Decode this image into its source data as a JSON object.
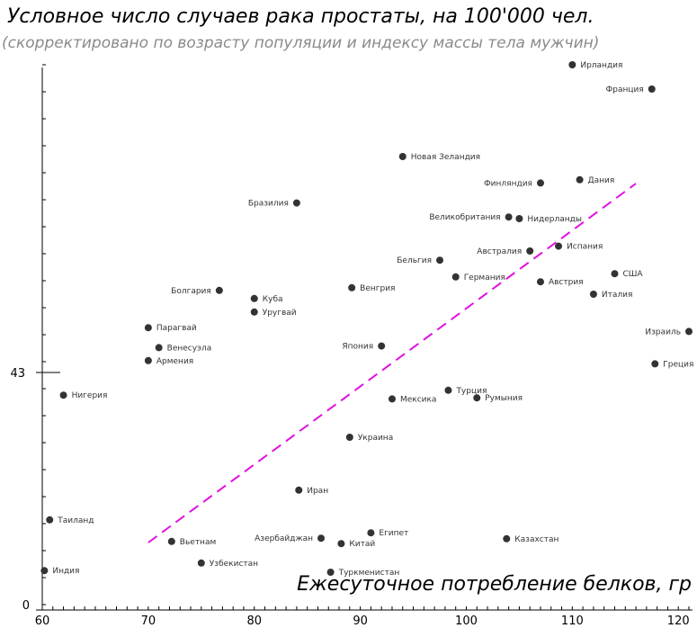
{
  "chart_data": {
    "type": "scatter",
    "title": "Условное число случаев рака простаты, на 100'000 чел.",
    "subtitle": "(скорректировано по возрасту популяции и индексу массы тела мужчин)",
    "xlabel": "Ежесуточное потребление белков, гр",
    "ylabel": "",
    "xlim": [
      60,
      121
    ],
    "x_ticks": [
      "60",
      "70",
      "80",
      "90",
      "100",
      "110",
      "120"
    ],
    "y_ticks": [
      "0",
      "43"
    ],
    "grid": false,
    "trendline": {
      "color": "#e010e0",
      "style": "dashed",
      "x": [
        70,
        116
      ],
      "y": [
        11.5,
        78
      ]
    },
    "points": [
      {
        "label": "Ирландия",
        "x": 110.0,
        "y": 100.0
      },
      {
        "label": "Франция",
        "x": 117.5,
        "y": 95.5
      },
      {
        "label": "Новая  Зеландия",
        "x": 94.0,
        "y": 83.0
      },
      {
        "label": "Дания",
        "x": 110.7,
        "y": 78.7
      },
      {
        "label": "Финляндия",
        "x": 107.0,
        "y": 78.1
      },
      {
        "label": "Бразилия",
        "x": 84.0,
        "y": 74.4
      },
      {
        "label": "Великобритания",
        "x": 104.0,
        "y": 71.8
      },
      {
        "label": "Нидерланды",
        "x": 105.0,
        "y": 71.5
      },
      {
        "label": "Австралия",
        "x": 106.0,
        "y": 65.5
      },
      {
        "label": "Испания",
        "x": 108.7,
        "y": 66.4
      },
      {
        "label": "Бельгия",
        "x": 97.5,
        "y": 63.8
      },
      {
        "label": "США",
        "x": 114.0,
        "y": 61.3
      },
      {
        "label": "Германия",
        "x": 99.0,
        "y": 60.7
      },
      {
        "label": "Австрия",
        "x": 107.0,
        "y": 59.8
      },
      {
        "label": "Венгрия",
        "x": 89.2,
        "y": 58.7
      },
      {
        "label": "Италия",
        "x": 112.0,
        "y": 57.5
      },
      {
        "label": "Болгария",
        "x": 76.7,
        "y": 58.2
      },
      {
        "label": "Куба",
        "x": 80.0,
        "y": 56.7
      },
      {
        "label": "Уругвай",
        "x": 80.0,
        "y": 54.2
      },
      {
        "label": "Парагвай",
        "x": 70.0,
        "y": 51.3
      },
      {
        "label": "Израиль",
        "x": 121.0,
        "y": 50.6
      },
      {
        "label": "Венесуэла",
        "x": 71.0,
        "y": 47.6
      },
      {
        "label": "Япония",
        "x": 92.0,
        "y": 47.9
      },
      {
        "label": "Армения",
        "x": 70.0,
        "y": 45.2
      },
      {
        "label": "Греция",
        "x": 117.8,
        "y": 44.6
      },
      {
        "label": "Нигерия",
        "x": 62.0,
        "y": 38.8
      },
      {
        "label": "Турция",
        "x": 98.3,
        "y": 39.7
      },
      {
        "label": "Мексика",
        "x": 93.0,
        "y": 38.1
      },
      {
        "label": "Румыния",
        "x": 101.0,
        "y": 38.3
      },
      {
        "label": "Украина",
        "x": 89.0,
        "y": 31.0
      },
      {
        "label": "Иран",
        "x": 84.2,
        "y": 21.2
      },
      {
        "label": "Таиланд",
        "x": 60.7,
        "y": 15.7
      },
      {
        "label": "Египет",
        "x": 91.0,
        "y": 13.3
      },
      {
        "label": "Вьетнам",
        "x": 72.2,
        "y": 11.7
      },
      {
        "label": "Азербайджан",
        "x": 86.3,
        "y": 12.3
      },
      {
        "label": "Китай",
        "x": 88.2,
        "y": 11.3
      },
      {
        "label": "Казахстан",
        "x": 103.8,
        "y": 12.2
      },
      {
        "label": "Узбекистан",
        "x": 75.0,
        "y": 7.7
      },
      {
        "label": "Индия",
        "x": 60.2,
        "y": 6.3
      },
      {
        "label": "Туркменистан",
        "x": 87.2,
        "y": 6.0
      }
    ]
  }
}
